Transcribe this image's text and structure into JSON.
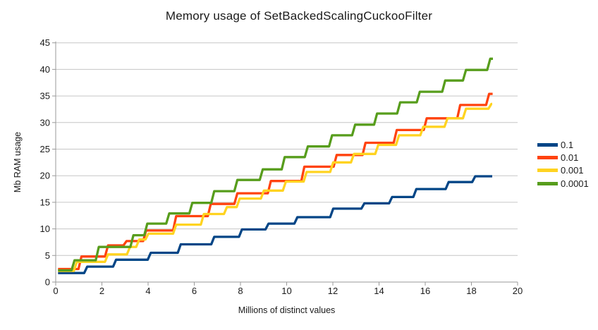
{
  "title": "Memory usage of SetBackedScalingCuckooFilter",
  "x_axis": {
    "label": "Millions of distinct values",
    "min": 0,
    "max": 20,
    "ticks": [
      0,
      2,
      4,
      6,
      8,
      10,
      12,
      14,
      16,
      18,
      20
    ]
  },
  "y_axis": {
    "label": "Mb RAM usage",
    "min": 0,
    "max": 45,
    "ticks": [
      0,
      5,
      10,
      15,
      20,
      25,
      30,
      35,
      40,
      45
    ]
  },
  "legend": {
    "position": "right",
    "items": [
      {
        "label": "0.1",
        "color": "#004586"
      },
      {
        "label": "0.01",
        "color": "#FF420E"
      },
      {
        "label": "0.001",
        "color": "#FFD320"
      },
      {
        "label": "0.0001",
        "color": "#579D1C"
      }
    ]
  },
  "style_colors": {
    "gridline": "#c6c6c6",
    "axis": "#9a9a9a",
    "tick_text": "#1a1a1a",
    "background": "#ffffff"
  },
  "chart_data": {
    "type": "line",
    "line_style": "step",
    "title": "Memory usage of SetBackedScalingCuckooFilter",
    "xlabel": "Millions of distinct values",
    "ylabel": "Mb RAM usage",
    "xlim": [
      0,
      20
    ],
    "ylim": [
      0,
      45
    ],
    "grid": "horizontal",
    "legend_position": "right",
    "x_start": 0.1,
    "series": [
      {
        "name": "0.1",
        "color": "#004586",
        "x_end": 18.9,
        "plateaus": [
          [
            0,
            1.7
          ],
          [
            1.3,
            2.9
          ],
          [
            2.55,
            4.2
          ],
          [
            4.05,
            5.5
          ],
          [
            5.35,
            7.1
          ],
          [
            6.8,
            8.5
          ],
          [
            8.0,
            9.9
          ],
          [
            9.15,
            11.0
          ],
          [
            10.4,
            12.2
          ],
          [
            11.95,
            13.8
          ],
          [
            13.3,
            14.8
          ],
          [
            14.5,
            16.0
          ],
          [
            15.55,
            17.5
          ],
          [
            16.95,
            18.8
          ],
          [
            18.1,
            19.9
          ]
        ]
      },
      {
        "name": "0.01",
        "color": "#FF420E",
        "x_end": 18.92,
        "plateaus": [
          [
            0,
            2.45
          ],
          [
            1.05,
            4.8
          ],
          [
            2.2,
            6.9
          ],
          [
            3.0,
            7.7
          ],
          [
            3.85,
            9.7
          ],
          [
            5.15,
            12.4
          ],
          [
            6.65,
            14.7
          ],
          [
            7.8,
            16.7
          ],
          [
            9.25,
            19.0
          ],
          [
            10.7,
            21.7
          ],
          [
            12.1,
            23.9
          ],
          [
            13.35,
            26.2
          ],
          [
            14.7,
            28.6
          ],
          [
            16.0,
            30.8
          ],
          [
            17.45,
            33.3
          ],
          [
            18.7,
            35.4
          ]
        ]
      },
      {
        "name": "0.001",
        "color": "#FFD320",
        "x_end": 18.9,
        "plateaus": [
          [
            0,
            2.1
          ],
          [
            0.85,
            3.8
          ],
          [
            2.2,
            5.2
          ],
          [
            3.15,
            6.6
          ],
          [
            3.55,
            8.0
          ],
          [
            3.95,
            9.1
          ],
          [
            5.15,
            10.8
          ],
          [
            6.35,
            12.8
          ],
          [
            7.35,
            14.1
          ],
          [
            7.9,
            15.7
          ],
          [
            8.95,
            17.2
          ],
          [
            9.9,
            18.9
          ],
          [
            10.8,
            20.7
          ],
          [
            11.95,
            22.5
          ],
          [
            12.85,
            24.1
          ],
          [
            13.9,
            25.8
          ],
          [
            14.8,
            27.6
          ],
          [
            15.85,
            29.2
          ],
          [
            16.9,
            30.8
          ],
          [
            17.7,
            32.6
          ],
          [
            18.8,
            33.5
          ]
        ]
      },
      {
        "name": "0.0001",
        "color": "#579D1C",
        "x_end": 18.93,
        "plateaus": [
          [
            0,
            2.2
          ],
          [
            0.75,
            4.1
          ],
          [
            1.8,
            6.6
          ],
          [
            3.3,
            8.8
          ],
          [
            3.9,
            11.0
          ],
          [
            4.85,
            12.9
          ],
          [
            5.85,
            14.9
          ],
          [
            6.8,
            17.1
          ],
          [
            7.8,
            19.2
          ],
          [
            8.9,
            21.2
          ],
          [
            9.85,
            23.5
          ],
          [
            10.85,
            25.5
          ],
          [
            11.9,
            27.6
          ],
          [
            12.9,
            29.6
          ],
          [
            13.85,
            31.7
          ],
          [
            14.85,
            33.8
          ],
          [
            15.7,
            35.8
          ],
          [
            16.8,
            37.9
          ],
          [
            17.7,
            39.9
          ],
          [
            18.75,
            42.0
          ]
        ]
      }
    ]
  }
}
